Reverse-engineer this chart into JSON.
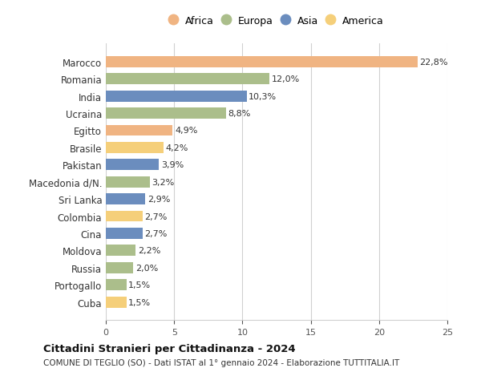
{
  "categories": [
    "Marocco",
    "Romania",
    "India",
    "Ucraina",
    "Egitto",
    "Brasile",
    "Pakistan",
    "Macedonia d/N.",
    "Sri Lanka",
    "Colombia",
    "Cina",
    "Moldova",
    "Russia",
    "Portogallo",
    "Cuba"
  ],
  "values": [
    22.8,
    12.0,
    10.3,
    8.8,
    4.9,
    4.2,
    3.9,
    3.2,
    2.9,
    2.7,
    2.7,
    2.2,
    2.0,
    1.5,
    1.5
  ],
  "labels": [
    "22,8%",
    "12,0%",
    "10,3%",
    "8,8%",
    "4,9%",
    "4,2%",
    "3,9%",
    "3,2%",
    "2,9%",
    "2,7%",
    "2,7%",
    "2,2%",
    "2,0%",
    "1,5%",
    "1,5%"
  ],
  "continents": [
    "Africa",
    "Europa",
    "Asia",
    "Europa",
    "Africa",
    "America",
    "Asia",
    "Europa",
    "Asia",
    "America",
    "Asia",
    "Europa",
    "Europa",
    "Europa",
    "America"
  ],
  "colors": {
    "Africa": "#F0B482",
    "Europa": "#ABBE8B",
    "Asia": "#6B8DBE",
    "America": "#F5CF7A"
  },
  "legend_order": [
    "Africa",
    "Europa",
    "Asia",
    "America"
  ],
  "xlim": [
    0,
    25
  ],
  "xticks": [
    0,
    5,
    10,
    15,
    20,
    25
  ],
  "title": "Cittadini Stranieri per Cittadinanza - 2024",
  "subtitle": "COMUNE DI TEGLIO (SO) - Dati ISTAT al 1° gennaio 2024 - Elaborazione TUTTITALIA.IT",
  "background_color": "#ffffff",
  "grid_color": "#d0d0d0"
}
